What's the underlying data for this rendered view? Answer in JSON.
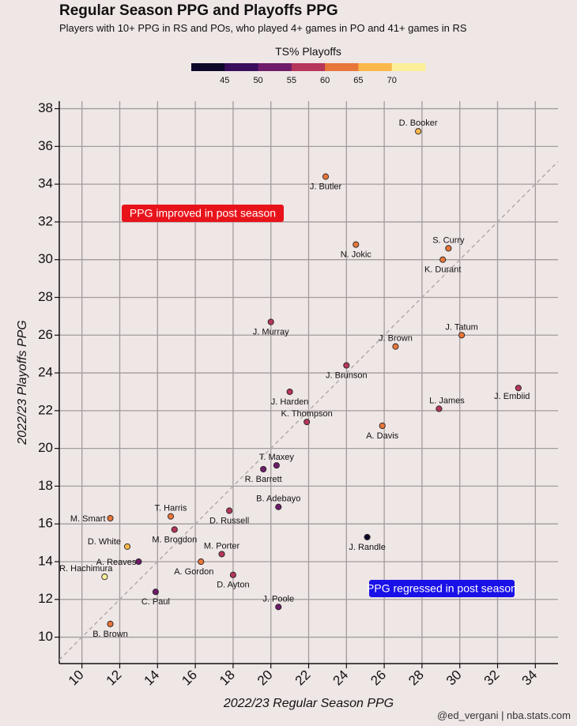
{
  "header": {
    "title": "Regular Season PPG and Playoffs PPG",
    "subtitle": "Players with 10+ PPG in RS and POs, who played 4+ games in PO and 41+ games in RS"
  },
  "colorbar": {
    "title": "TS% Playoffs",
    "ticks": [
      45,
      50,
      55,
      60,
      65,
      70
    ],
    "range": [
      40,
      75
    ],
    "colors": [
      "#0d0829",
      "#3a0e5c",
      "#6e1b6b",
      "#b5365a",
      "#e8763a",
      "#fbb84a",
      "#fcef9a"
    ]
  },
  "annotations": {
    "improved": "PPG improved in post season",
    "regressed": "PPG regressed in post season",
    "improved_color": "#e8131a",
    "regressed_color": "#1a10e8"
  },
  "credit": "@ed_vergani | nba.stats.com",
  "chart_data": {
    "type": "scatter",
    "title": "Regular Season PPG and Playoffs PPG",
    "xlabel": "2022/23 Regular Season PPG",
    "ylabel": "2022/23 Playoffs PPG",
    "xlim": [
      8.8,
      35.2
    ],
    "ylim": [
      8.6,
      38.4
    ],
    "xticks": [
      10,
      12,
      14,
      16,
      18,
      20,
      22,
      24,
      26,
      28,
      30,
      32,
      34
    ],
    "yticks": [
      10,
      12,
      14,
      16,
      18,
      20,
      22,
      24,
      26,
      28,
      30,
      32,
      34,
      36,
      38
    ],
    "grid": true,
    "reference_line": "y = x",
    "points": [
      {
        "name": "D. Booker",
        "x": 27.8,
        "y": 36.8,
        "ts": 69.0
      },
      {
        "name": "J. Butler",
        "x": 22.9,
        "y": 34.4,
        "ts": 64.0
      },
      {
        "name": "S. Curry",
        "x": 29.4,
        "y": 30.6,
        "ts": 61.0
      },
      {
        "name": "N. Jokic",
        "x": 24.5,
        "y": 30.8,
        "ts": 61.0
      },
      {
        "name": "K. Durant",
        "x": 29.1,
        "y": 30.0,
        "ts": 64.0
      },
      {
        "name": "J. Tatum",
        "x": 30.1,
        "y": 26.0,
        "ts": 60.0
      },
      {
        "name": "J. Murray",
        "x": 20.0,
        "y": 26.7,
        "ts": 56.0
      },
      {
        "name": "J. Brown",
        "x": 26.6,
        "y": 25.4,
        "ts": 64.0
      },
      {
        "name": "J. Brunson",
        "x": 24.0,
        "y": 24.4,
        "ts": 55.0
      },
      {
        "name": "J. Embiid",
        "x": 33.1,
        "y": 23.2,
        "ts": 58.0
      },
      {
        "name": "J. Harden",
        "x": 21.0,
        "y": 23.0,
        "ts": 57.0
      },
      {
        "name": "L. James",
        "x": 28.9,
        "y": 22.1,
        "ts": 56.0
      },
      {
        "name": "K. Thompson",
        "x": 21.9,
        "y": 21.4,
        "ts": 57.0
      },
      {
        "name": "A. Davis",
        "x": 25.9,
        "y": 21.2,
        "ts": 60.0
      },
      {
        "name": "T. Maxey",
        "x": 20.3,
        "y": 19.1,
        "ts": 53.0
      },
      {
        "name": "R. Barrett",
        "x": 19.6,
        "y": 18.9,
        "ts": 54.0
      },
      {
        "name": "B. Adebayo",
        "x": 20.4,
        "y": 16.9,
        "ts": 53.0
      },
      {
        "name": "D. Russell",
        "x": 17.8,
        "y": 16.7,
        "ts": 57.0
      },
      {
        "name": "T. Harris",
        "x": 14.7,
        "y": 16.4,
        "ts": 62.0
      },
      {
        "name": "M. Smart",
        "x": 11.5,
        "y": 16.3,
        "ts": 60.0
      },
      {
        "name": "M. Brogdon",
        "x": 14.9,
        "y": 15.7,
        "ts": 58.0
      },
      {
        "name": "J. Randle",
        "x": 25.1,
        "y": 15.3,
        "ts": 44.0
      },
      {
        "name": "D. White",
        "x": 12.4,
        "y": 14.8,
        "ts": 66.0
      },
      {
        "name": "M. Porter",
        "x": 17.4,
        "y": 14.4,
        "ts": 59.0
      },
      {
        "name": "A. Reaves",
        "x": 13.0,
        "y": 14.0,
        "ts": 54.0
      },
      {
        "name": "A. Gordon",
        "x": 16.3,
        "y": 14.0,
        "ts": 62.0
      },
      {
        "name": "D. Ayton",
        "x": 18.0,
        "y": 13.3,
        "ts": 57.0
      },
      {
        "name": "R. Hachimura",
        "x": 11.2,
        "y": 13.2,
        "ts": 70.0
      },
      {
        "name": "C. Paul",
        "x": 13.9,
        "y": 12.4,
        "ts": 52.0
      },
      {
        "name": "J. Poole",
        "x": 20.4,
        "y": 11.6,
        "ts": 50.0
      },
      {
        "name": "B. Brown",
        "x": 11.5,
        "y": 10.7,
        "ts": 62.0
      }
    ]
  }
}
